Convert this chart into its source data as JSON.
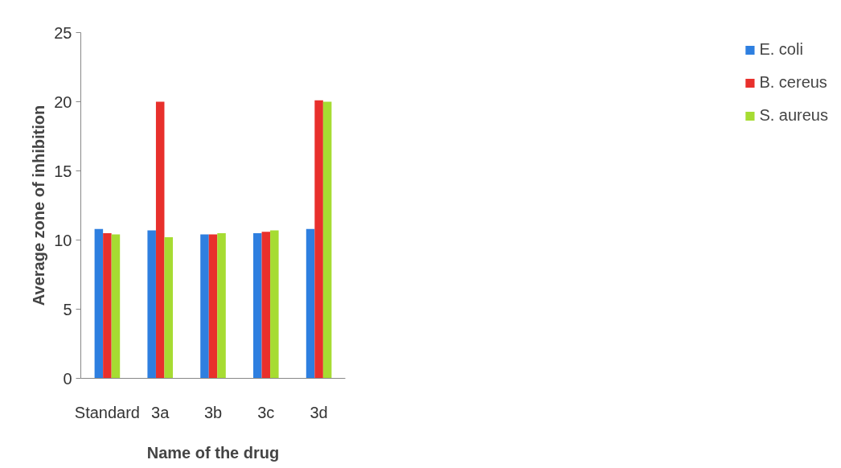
{
  "chart_data": {
    "type": "bar",
    "xlabel": "Name of the drug",
    "ylabel": "Average zone of inhibition",
    "categories": [
      "Standard",
      "3a",
      "3b",
      "3c",
      "3d"
    ],
    "series": [
      {
        "name": "E. coli",
        "color": "#2e7fe0",
        "values": [
          10.8,
          10.7,
          10.4,
          10.5,
          10.8
        ]
      },
      {
        "name": "B. cereus",
        "color": "#e8302c",
        "values": [
          10.5,
          20.0,
          10.4,
          10.6,
          20.1
        ]
      },
      {
        "name": "S. aureus",
        "color": "#a6dc32",
        "values": [
          10.4,
          10.2,
          10.5,
          10.7,
          20.0
        ]
      }
    ],
    "ylim": [
      0,
      25
    ],
    "yticks": [
      0,
      5,
      10,
      15,
      20,
      25
    ],
    "grid": false,
    "legend": "right"
  }
}
